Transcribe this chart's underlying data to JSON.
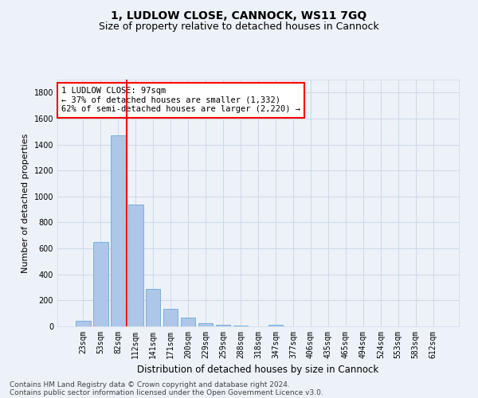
{
  "title": "1, LUDLOW CLOSE, CANNOCK, WS11 7GQ",
  "subtitle": "Size of property relative to detached houses in Cannock",
  "xlabel": "Distribution of detached houses by size in Cannock",
  "ylabel": "Number of detached properties",
  "categories": [
    "23sqm",
    "53sqm",
    "82sqm",
    "112sqm",
    "141sqm",
    "171sqm",
    "200sqm",
    "229sqm",
    "259sqm",
    "288sqm",
    "318sqm",
    "347sqm",
    "377sqm",
    "406sqm",
    "435sqm",
    "465sqm",
    "494sqm",
    "524sqm",
    "553sqm",
    "583sqm",
    "612sqm"
  ],
  "values": [
    40,
    648,
    1474,
    935,
    290,
    135,
    65,
    25,
    15,
    5,
    0,
    15,
    0,
    0,
    0,
    0,
    0,
    0,
    0,
    0,
    0
  ],
  "bar_color": "#aec6e8",
  "bar_edge_color": "#6aaad4",
  "vline_color": "red",
  "vline_x_index": 2.5,
  "annotation_text": "1 LUDLOW CLOSE: 97sqm\n← 37% of detached houses are smaller (1,332)\n62% of semi-detached houses are larger (2,220) →",
  "annotation_box_color": "white",
  "annotation_box_edge_color": "red",
  "ylim": [
    0,
    1900
  ],
  "yticks": [
    0,
    200,
    400,
    600,
    800,
    1000,
    1200,
    1400,
    1600,
    1800
  ],
  "grid_color": "#ccd9e8",
  "background_color": "#edf2f8",
  "footer_line1": "Contains HM Land Registry data © Crown copyright and database right 2024.",
  "footer_line2": "Contains public sector information licensed under the Open Government Licence v3.0.",
  "title_fontsize": 10,
  "subtitle_fontsize": 9,
  "xlabel_fontsize": 8.5,
  "ylabel_fontsize": 8,
  "tick_fontsize": 7,
  "annotation_fontsize": 7.5,
  "footer_fontsize": 6.5
}
